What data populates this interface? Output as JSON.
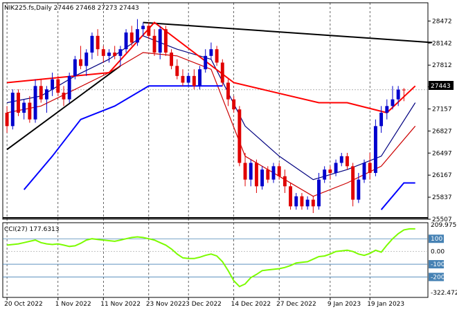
{
  "main_title": "NIK225.fs,Daily  27446 27468 27273 27443",
  "cci_title": "CCI(27) 177.6313",
  "current_price_label": "27443",
  "chart_data": [
    {
      "type": "candlestick",
      "title": "NIK225.fs,Daily  27446 27468 27273 27443",
      "ylim": [
        25507,
        28600
      ],
      "y_ticks": [
        "28472",
        "28142",
        "27812",
        "27487",
        "27157",
        "26827",
        "26497",
        "26167",
        "25837",
        "25507"
      ],
      "x_ticks": [
        "20 Oct 2022",
        "1 Nov 2022",
        "11 Nov 2022",
        "23 Nov 2022",
        "3 Dec 2022",
        "14 Dec 2022",
        "27 Dec 2022",
        "9 Jan 2023",
        "19 Jan 2023"
      ],
      "current_price": 27443,
      "candles": [
        [
          27100,
          27200,
          26800,
          26900
        ],
        [
          26900,
          27450,
          26850,
          27400
        ],
        [
          27400,
          27450,
          27050,
          27100
        ],
        [
          27100,
          27300,
          27000,
          27250
        ],
        [
          27250,
          27350,
          26950,
          27000
        ],
        [
          27000,
          27600,
          26950,
          27500
        ],
        [
          27500,
          27600,
          27250,
          27300
        ],
        [
          27300,
          27500,
          27100,
          27450
        ],
        [
          27450,
          27700,
          27350,
          27600
        ],
        [
          27600,
          27650,
          27350,
          27400
        ],
        [
          27400,
          27500,
          27200,
          27300
        ],
        [
          27300,
          27700,
          27250,
          27650
        ],
        [
          27650,
          27950,
          27600,
          27900
        ],
        [
          27900,
          28100,
          27750,
          27800
        ],
        [
          27800,
          28050,
          27650,
          28000
        ],
        [
          28000,
          28300,
          27900,
          28250
        ],
        [
          28250,
          28350,
          27950,
          28050
        ],
        [
          28050,
          28100,
          27850,
          27950
        ],
        [
          27950,
          28050,
          27850,
          28000
        ],
        [
          28000,
          28100,
          27900,
          27950
        ],
        [
          27950,
          28100,
          27800,
          28050
        ],
        [
          28050,
          28350,
          28000,
          28300
        ],
        [
          28300,
          28400,
          28100,
          28150
        ],
        [
          28150,
          28500,
          28100,
          28350
        ],
        [
          28350,
          28450,
          28250,
          28400
        ],
        [
          28400,
          28450,
          28200,
          28250
        ],
        [
          28250,
          28350,
          27950,
          28000
        ],
        [
          28000,
          28400,
          27900,
          28350
        ],
        [
          28350,
          28400,
          27950,
          28000
        ],
        [
          28000,
          28050,
          27750,
          27800
        ],
        [
          27800,
          27900,
          27600,
          27650
        ],
        [
          27650,
          27750,
          27500,
          27550
        ],
        [
          27550,
          27700,
          27500,
          27650
        ],
        [
          27650,
          27750,
          27450,
          27500
        ],
        [
          27500,
          27800,
          27450,
          27750
        ],
        [
          27750,
          28050,
          27700,
          27950
        ],
        [
          27950,
          28150,
          27900,
          28050
        ],
        [
          28050,
          28100,
          27800,
          27850
        ],
        [
          27850,
          27900,
          27500,
          27550
        ],
        [
          27550,
          27600,
          27200,
          27300
        ],
        [
          27300,
          27350,
          27100,
          27150
        ],
        [
          27150,
          27200,
          26300,
          26350
        ],
        [
          26350,
          26500,
          26000,
          26100
        ],
        [
          26100,
          26400,
          26000,
          26350
        ],
        [
          26350,
          26400,
          25900,
          26000
        ],
        [
          26000,
          26300,
          25950,
          26250
        ],
        [
          26250,
          26300,
          26050,
          26100
        ],
        [
          26100,
          26350,
          26050,
          26300
        ],
        [
          26300,
          26350,
          26100,
          26150
        ],
        [
          26150,
          26250,
          25900,
          26000
        ],
        [
          26000,
          26050,
          25650,
          25700
        ],
        [
          25700,
          25900,
          25650,
          25850
        ],
        [
          25850,
          25900,
          25650,
          25700
        ],
        [
          25700,
          25850,
          25650,
          25800
        ],
        [
          25800,
          25850,
          25600,
          25700
        ],
        [
          25700,
          26200,
          25650,
          26100
        ],
        [
          26100,
          26300,
          26050,
          26250
        ],
        [
          26250,
          26300,
          26100,
          26200
        ],
        [
          26200,
          26400,
          26150,
          26350
        ],
        [
          26350,
          26500,
          26300,
          26450
        ],
        [
          26450,
          26500,
          26250,
          26300
        ],
        [
          26300,
          26350,
          25700,
          25800
        ],
        [
          25800,
          26200,
          25750,
          26100
        ],
        [
          26100,
          26400,
          26050,
          26350
        ],
        [
          26350,
          26500,
          26100,
          26200
        ],
        [
          26200,
          27000,
          26150,
          26900
        ],
        [
          26900,
          27200,
          26800,
          27100
        ],
        [
          27100,
          27300,
          27000,
          27200
        ],
        [
          27200,
          27500,
          27150,
          27300
        ],
        [
          27300,
          27500,
          27200,
          27446
        ],
        [
          27446,
          27468,
          27273,
          27443
        ]
      ],
      "series": [
        {
          "name": "",
          "color": "#000080",
          "points": [
            [
              0,
              27250
            ],
            [
              6,
              27350
            ],
            [
              12,
              27650
            ],
            [
              18,
              27900
            ],
            [
              24,
              28250
            ],
            [
              30,
              28050
            ],
            [
              36,
              27900
            ],
            [
              42,
              26900
            ],
            [
              48,
              26450
            ],
            [
              54,
              26100
            ],
            [
              60,
              26250
            ],
            [
              66,
              26450
            ],
            [
              72,
              27250
            ]
          ]
        },
        {
          "name": "",
          "color": "#cc0000",
          "points": [
            [
              0,
              27100
            ],
            [
              6,
              27200
            ],
            [
              12,
              27450
            ],
            [
              18,
              27700
            ],
            [
              24,
              28000
            ],
            [
              30,
              27950
            ],
            [
              36,
              27750
            ],
            [
              42,
              26450
            ],
            [
              48,
              26150
            ],
            [
              54,
              25850
            ],
            [
              60,
              26050
            ],
            [
              66,
              26300
            ],
            [
              72,
              26900
            ]
          ]
        },
        {
          "name": "",
          "color": "#0000ff",
          "points": [
            [
              3,
              25950
            ],
            [
              8,
              26450
            ],
            [
              13,
              27000
            ],
            [
              19,
              27200
            ],
            [
              25,
              27500
            ],
            [
              31,
              27500
            ],
            [
              38,
              27500
            ]
          ]
        },
        {
          "name": "",
          "color": "#0000ff",
          "points": [
            [
              66,
              25650
            ],
            [
              70,
              26050
            ],
            [
              72,
              26050
            ]
          ]
        },
        {
          "name": "",
          "color": "#ff0000",
          "points": [
            [
              0,
              27550
            ],
            [
              18,
              27700
            ],
            [
              26,
              28450
            ],
            [
              40,
              27550
            ],
            [
              55,
              27250
            ],
            [
              60,
              27250
            ],
            [
              67,
              27100
            ],
            [
              72,
              27500
            ]
          ]
        }
      ],
      "trendlines": [
        {
          "color": "#000000",
          "from": [
            0,
            26550
          ],
          "to": [
            20,
            27800
          ]
        },
        {
          "color": "#000000",
          "from": [
            24,
            28450
          ],
          "to": [
            75,
            28150
          ]
        }
      ]
    },
    {
      "type": "line",
      "title": "CCI(27) 177.6313",
      "ylim": [
        -322.472,
        209.9756
      ],
      "y_ticks": [
        "209.9756",
        "100",
        "0.00",
        "-100",
        "-200",
        "-322.472"
      ],
      "levels": [
        100,
        -100,
        -200
      ],
      "series": [
        {
          "name": "CCI(27)",
          "color": "#7cfc00",
          "values": [
            50,
            55,
            60,
            70,
            80,
            90,
            70,
            60,
            55,
            60,
            50,
            40,
            45,
            65,
            90,
            100,
            95,
            90,
            85,
            80,
            90,
            100,
            110,
            115,
            110,
            100,
            90,
            70,
            50,
            20,
            -20,
            -50,
            -55,
            -55,
            -45,
            -30,
            -20,
            -35,
            -80,
            -150,
            -230,
            -275,
            -255,
            -205,
            -180,
            -150,
            -145,
            -140,
            -135,
            -125,
            -110,
            -90,
            -85,
            -80,
            -60,
            -40,
            -35,
            -20,
            0,
            5,
            10,
            0,
            -20,
            -30,
            -15,
            10,
            -5,
            50,
            100,
            140,
            170,
            178,
            178
          ]
        }
      ]
    }
  ]
}
